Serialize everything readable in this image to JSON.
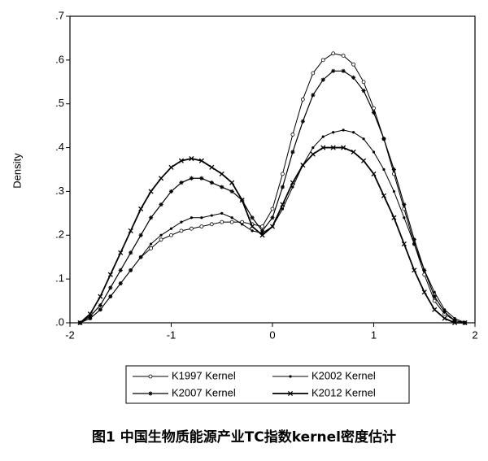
{
  "chart_data": {
    "type": "line",
    "ylabel": "Density",
    "caption": "图1 中国生物质能源产业TC指数kernel密度估计",
    "x": [
      -1.9,
      -1.8,
      -1.7,
      -1.6,
      -1.5,
      -1.4,
      -1.3,
      -1.2,
      -1.1,
      -1,
      -0.9,
      -0.8,
      -0.7,
      -0.6,
      -0.5,
      -0.4,
      -0.3,
      -0.2,
      -0.1,
      0,
      0.1,
      0.2,
      0.3,
      0.4,
      0.5,
      0.6,
      0.7,
      0.8,
      0.9,
      1,
      1.1,
      1.2,
      1.3,
      1.4,
      1.5,
      1.6,
      1.7,
      1.8,
      1.9
    ],
    "series": [
      {
        "name": "K1997 Kernel",
        "color": "#000000",
        "marker": "circle",
        "values": [
          0,
          0.01,
          0.03,
          0.06,
          0.09,
          0.12,
          0.15,
          0.17,
          0.19,
          0.2,
          0.21,
          0.215,
          0.22,
          0.225,
          0.23,
          0.23,
          0.23,
          0.225,
          0.22,
          0.26,
          0.34,
          0.43,
          0.51,
          0.57,
          0.6,
          0.615,
          0.61,
          0.59,
          0.55,
          0.49,
          0.42,
          0.34,
          0.26,
          0.18,
          0.11,
          0.05,
          0.02,
          0.005,
          0
        ]
      },
      {
        "name": "K2002 Kernel",
        "color": "#000000",
        "marker": "dot",
        "values": [
          0,
          0.01,
          0.03,
          0.06,
          0.09,
          0.12,
          0.15,
          0.18,
          0.2,
          0.215,
          0.23,
          0.24,
          0.24,
          0.245,
          0.25,
          0.24,
          0.225,
          0.21,
          0.205,
          0.22,
          0.26,
          0.31,
          0.36,
          0.4,
          0.425,
          0.435,
          0.44,
          0.435,
          0.42,
          0.39,
          0.35,
          0.3,
          0.24,
          0.18,
          0.12,
          0.07,
          0.03,
          0.01,
          0
        ]
      },
      {
        "name": "K2007 Kernel",
        "color": "#000000",
        "marker": "star",
        "values": [
          0,
          0.015,
          0.04,
          0.08,
          0.12,
          0.16,
          0.2,
          0.24,
          0.27,
          0.3,
          0.32,
          0.33,
          0.33,
          0.32,
          0.31,
          0.3,
          0.28,
          0.24,
          0.21,
          0.24,
          0.31,
          0.39,
          0.46,
          0.52,
          0.555,
          0.575,
          0.575,
          0.56,
          0.53,
          0.48,
          0.42,
          0.35,
          0.27,
          0.19,
          0.12,
          0.06,
          0.025,
          0.005,
          0
        ]
      },
      {
        "name": "K2012 Kernel",
        "color": "#000000",
        "marker": "cross",
        "values": [
          0,
          0.02,
          0.06,
          0.11,
          0.16,
          0.21,
          0.26,
          0.3,
          0.33,
          0.355,
          0.37,
          0.375,
          0.37,
          0.355,
          0.34,
          0.32,
          0.28,
          0.22,
          0.2,
          0.22,
          0.27,
          0.32,
          0.36,
          0.385,
          0.4,
          0.4,
          0.4,
          0.39,
          0.37,
          0.34,
          0.29,
          0.24,
          0.18,
          0.12,
          0.07,
          0.03,
          0.01,
          0,
          0
        ]
      }
    ],
    "xlim": [
      -2,
      2
    ],
    "xticks": [
      -2,
      -1,
      0,
      1,
      2
    ],
    "ylim": [
      0,
      0.7
    ],
    "yticks": [
      {
        "value": 0,
        "label": ".0"
      },
      {
        "value": 0.1,
        "label": ".1"
      },
      {
        "value": 0.2,
        "label": ".2"
      },
      {
        "value": 0.3,
        "label": ".3"
      },
      {
        "value": 0.4,
        "label": ".4"
      },
      {
        "value": 0.5,
        "label": ".5"
      },
      {
        "value": 0.6,
        "label": ".6"
      },
      {
        "value": 0.7,
        "label": ".7"
      }
    ],
    "legend": "bottom",
    "grid": false
  }
}
